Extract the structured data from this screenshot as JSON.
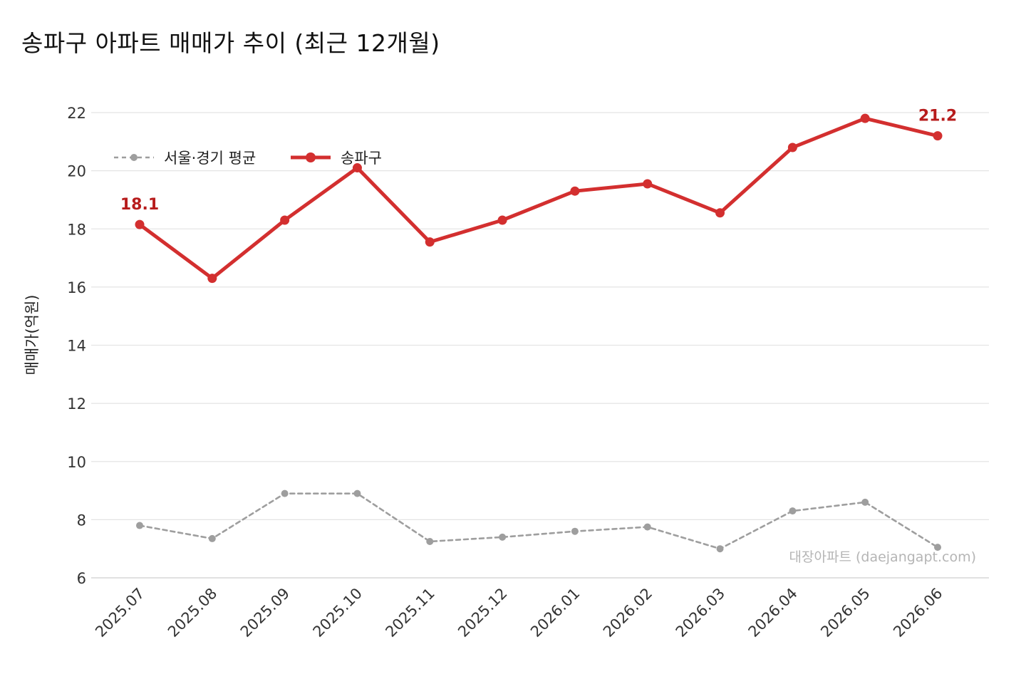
{
  "title": "송파구 아파트 매매가 추이 (최근 12개월)",
  "watermark": "대장아파트 (daejangapt.com)",
  "colors": {
    "primary": "#d32f2f",
    "primary_label": "#b71c1c",
    "average": "#9e9e9e",
    "grid": "#e4e4e4"
  },
  "chart_data": {
    "type": "line",
    "title": "송파구 아파트 매매가 추이 (최근 12개월)",
    "xlabel": "",
    "ylabel": "매매가(억원)",
    "ylim": [
      6,
      22
    ],
    "yticks": [
      6,
      8,
      10,
      12,
      14,
      16,
      18,
      20,
      22
    ],
    "grid": true,
    "legend_position": "top-left",
    "categories": [
      "2025.07",
      "2025.08",
      "2025.09",
      "2025.10",
      "2025.11",
      "2025.12",
      "2026.01",
      "2026.02",
      "2026.03",
      "2026.04",
      "2026.05",
      "2026.06"
    ],
    "series": [
      {
        "name": "서울·경기 평균",
        "style": "dashed",
        "color": "#9e9e9e",
        "values": [
          7.8,
          7.35,
          8.9,
          8.9,
          7.25,
          7.4,
          7.6,
          7.75,
          7.0,
          8.3,
          8.6,
          7.05
        ]
      },
      {
        "name": "송파구",
        "style": "solid",
        "color": "#d32f2f",
        "values": [
          18.15,
          16.3,
          18.3,
          20.1,
          17.55,
          18.3,
          19.3,
          19.55,
          18.55,
          20.8,
          21.8,
          21.2
        ]
      }
    ],
    "annotations": [
      {
        "series": "송파구",
        "index": 0,
        "text": "18.1"
      },
      {
        "series": "송파구",
        "index": 11,
        "text": "21.2"
      }
    ]
  }
}
